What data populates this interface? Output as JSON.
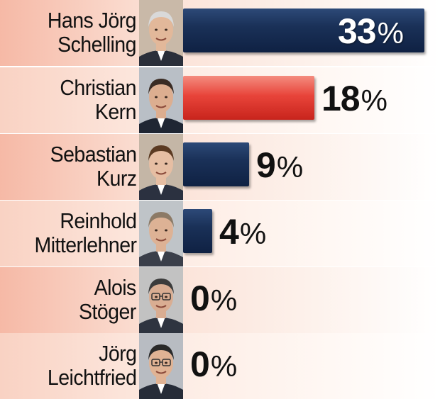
{
  "chart_data": {
    "type": "bar",
    "orientation": "horizontal",
    "title": "",
    "xlabel": "",
    "ylabel": "",
    "xlim": [
      0,
      33
    ],
    "unit": "%",
    "grid": false,
    "legend": "none",
    "categories": [
      "Hans Jörg Schelling",
      "Christian Kern",
      "Sebastian Kurz",
      "Reinhold Mitterlehner",
      "Alois Stöger",
      "Jörg Leichtfried"
    ],
    "labels": [
      [
        "Hans Jörg",
        "Schelling"
      ],
      [
        "Christian",
        "Kern"
      ],
      [
        "Sebastian",
        "Kurz"
      ],
      [
        "Reinhold",
        "Mitterlehner"
      ],
      [
        "Alois",
        "Stöger"
      ],
      [
        "Jörg",
        "Leichtfried"
      ]
    ],
    "values": [
      33,
      18,
      9,
      4,
      0,
      0
    ],
    "value_labels": [
      "33",
      "18",
      "9",
      "4",
      "0",
      "0"
    ],
    "bar_colors": [
      "#1a3158",
      "#e8443a",
      "#1a3158",
      "#1a3158",
      "#1a3158",
      "#1a3158"
    ],
    "photo_icons": [
      "portrait-icon",
      "portrait-icon",
      "portrait-icon",
      "portrait-icon",
      "portrait-icon",
      "portrait-icon"
    ]
  },
  "colors": {
    "navy": "#1a3158",
    "red": "#e8443a",
    "band": "#f6b9a6"
  }
}
